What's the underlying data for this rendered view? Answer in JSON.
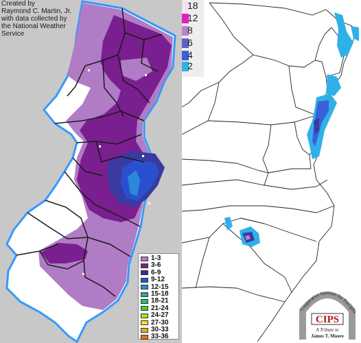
{
  "credit": {
    "line1": "Created by",
    "line2": "Raymond C. Martin, Jr.",
    "line3": "with data collected by",
    "line4": "the National Weather",
    "line5": "Service"
  },
  "nj_legend": [
    {
      "label": "1-3",
      "color": "#b07cc6"
    },
    {
      "label": "3-6",
      "color": "#7a1f8f"
    },
    {
      "label": "6-9",
      "color": "#3a2aa0"
    },
    {
      "label": "9-12",
      "color": "#2a50d0"
    },
    {
      "label": "12-15",
      "color": "#2a8ad8"
    },
    {
      "label": "15-18",
      "color": "#2aa6a0"
    },
    {
      "label": "18-21",
      "color": "#2ab878"
    },
    {
      "label": "21-24",
      "color": "#3ad040"
    },
    {
      "label": "24-27",
      "color": "#a8e020"
    },
    {
      "label": "27-30",
      "color": "#f0e020"
    },
    {
      "label": "30-33",
      "color": "#f0a020"
    },
    {
      "label": "33-36",
      "color": "#e87010"
    }
  ],
  "us_legend": [
    {
      "label": "18",
      "color": "#f8e0ee"
    },
    {
      "label": "12",
      "color": "#e020c0"
    },
    {
      "label": "8",
      "color": "#c080d0"
    },
    {
      "label": "6",
      "color": "#6060c8"
    },
    {
      "label": "4",
      "color": "#3a60d8"
    },
    {
      "label": "2",
      "color": "#30b0e8"
    }
  ],
  "logo": {
    "acronym": "CIPS",
    "arc_text": "Cooperative Institute for Precipitation Systems",
    "tribute_line1": "A Tribute to",
    "tribute_line2": "James T. Moore"
  },
  "colors": {
    "ocean_left": "#c8c8c8",
    "nj_light": "#b07cc6",
    "nj_dark": "#7a1f8f",
    "snow_blue": "#30b0e8",
    "snow_navy": "#3a3aa0"
  }
}
